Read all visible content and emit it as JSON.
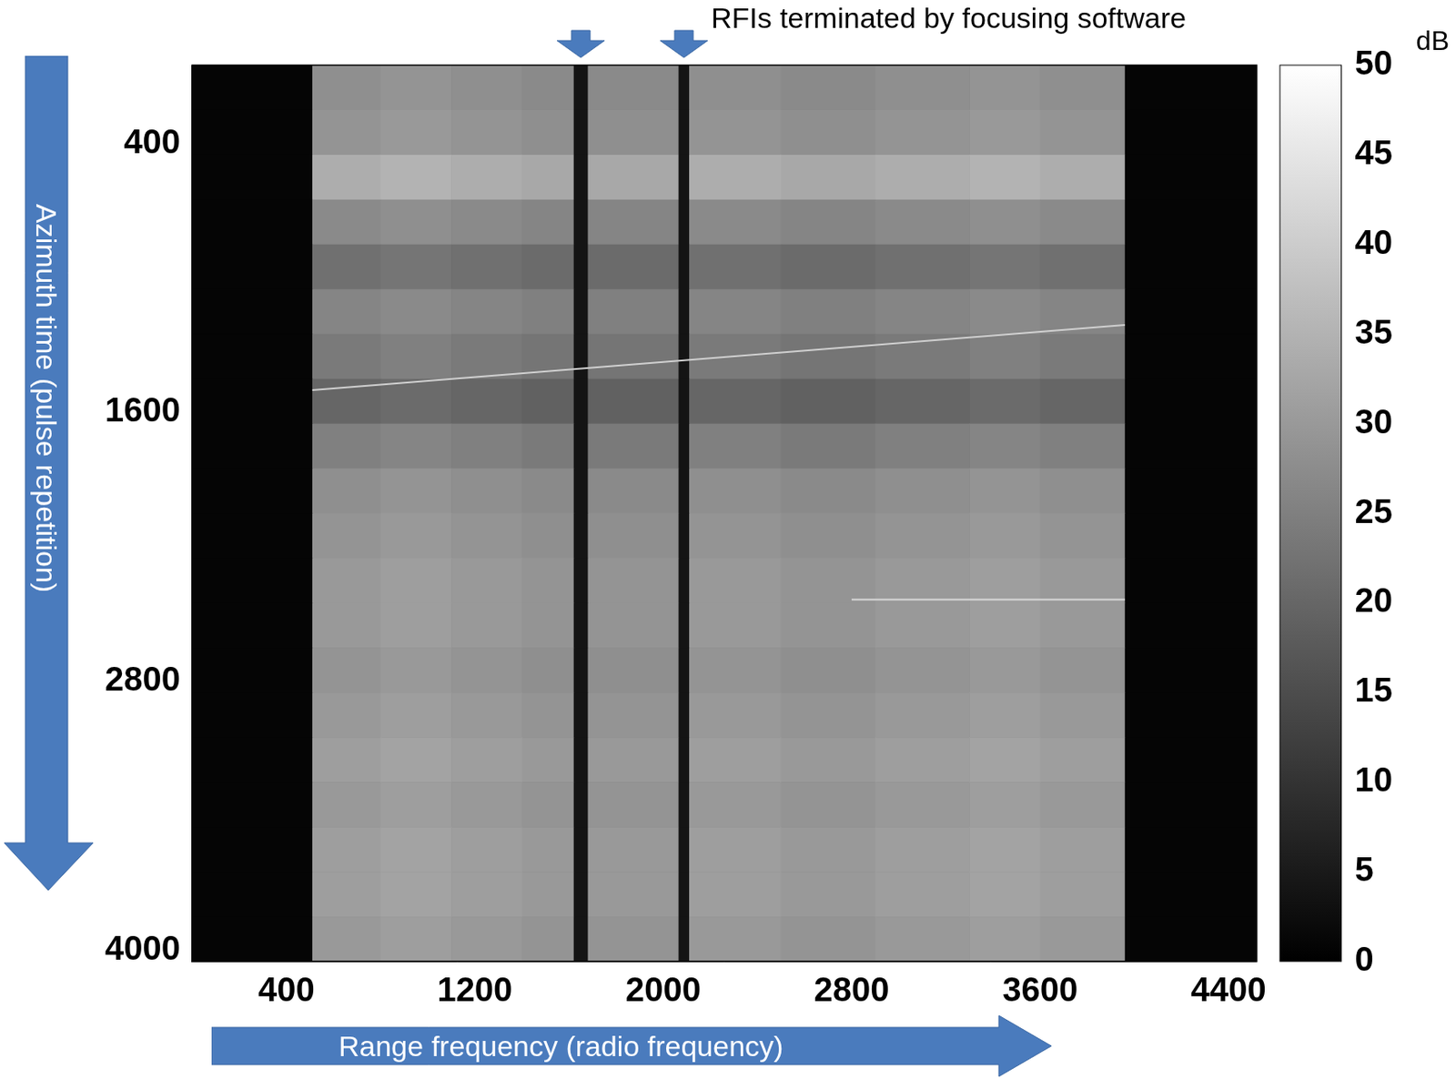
{
  "chart_data": {
    "type": "heatmap",
    "x_label": "Range frequency (radio frequency)",
    "y_label": "Azimuth time (pulse repetition)",
    "xlim": [
      0,
      4520
    ],
    "xticks": [
      400,
      1200,
      2000,
      2800,
      3600,
      4400
    ],
    "ylim": [
      4050,
      50
    ],
    "yticks": [
      400,
      1600,
      2800,
      4000
    ],
    "x_edges": [
      0,
      510,
      800,
      1100,
      1400,
      1620,
      1680,
      2065,
      2110,
      2500,
      2900,
      3300,
      3600,
      3960,
      4520
    ],
    "y_edges": [
      50,
      250,
      450,
      650,
      850,
      1050,
      1250,
      1450,
      1650,
      1850,
      2050,
      2250,
      2450,
      2650,
      2850,
      3050,
      3250,
      3450,
      3650,
      3850,
      4050
    ],
    "cells": [
      [
        1,
        28,
        29,
        28,
        27,
        4,
        27,
        4,
        28,
        27,
        28,
        29,
        28,
        1
      ],
      [
        1,
        29,
        30,
        29,
        28,
        4,
        28,
        4,
        29,
        28,
        29,
        30,
        29,
        1
      ],
      [
        1,
        34,
        35,
        34,
        33,
        4,
        33,
        4,
        34,
        33,
        34,
        35,
        34,
        1
      ],
      [
        1,
        27,
        28,
        27,
        26,
        4,
        26,
        4,
        27,
        26,
        27,
        28,
        27,
        1
      ],
      [
        1,
        22,
        23,
        22,
        21,
        4,
        21,
        4,
        22,
        21,
        22,
        23,
        22,
        1
      ],
      [
        1,
        26,
        27,
        26,
        25,
        4,
        25,
        4,
        26,
        25,
        26,
        27,
        26,
        1
      ],
      [
        1,
        24,
        25,
        24,
        23,
        4,
        23,
        4,
        24,
        23,
        24,
        25,
        24,
        1
      ],
      [
        1,
        20,
        21,
        20,
        19,
        4,
        19,
        4,
        20,
        19,
        20,
        21,
        20,
        1
      ],
      [
        1,
        25,
        26,
        25,
        24,
        4,
        24,
        4,
        25,
        24,
        25,
        26,
        25,
        1
      ],
      [
        1,
        28,
        29,
        28,
        27,
        4,
        27,
        4,
        28,
        27,
        28,
        29,
        28,
        1
      ],
      [
        1,
        29,
        30,
        29,
        28,
        4,
        28,
        4,
        29,
        28,
        29,
        30,
        29,
        1
      ],
      [
        1,
        30,
        31,
        30,
        29,
        4,
        29,
        4,
        30,
        29,
        30,
        31,
        30,
        1
      ],
      [
        1,
        30,
        31,
        30,
        29,
        4,
        29,
        4,
        30,
        29,
        30,
        31,
        30,
        1
      ],
      [
        1,
        29,
        30,
        29,
        28,
        4,
        28,
        4,
        29,
        28,
        29,
        30,
        29,
        1
      ],
      [
        1,
        30,
        31,
        30,
        29,
        4,
        29,
        4,
        30,
        29,
        30,
        31,
        30,
        1
      ],
      [
        1,
        31,
        32,
        31,
        30,
        4,
        30,
        4,
        31,
        30,
        31,
        32,
        31,
        1
      ],
      [
        1,
        30,
        31,
        30,
        29,
        4,
        29,
        4,
        30,
        29,
        30,
        31,
        30,
        1
      ],
      [
        1,
        31,
        32,
        31,
        30,
        4,
        30,
        4,
        31,
        30,
        31,
        32,
        31,
        1
      ],
      [
        1,
        31,
        32,
        31,
        30,
        4,
        30,
        4,
        31,
        30,
        31,
        32,
        31,
        1
      ],
      [
        1,
        30,
        31,
        30,
        29,
        4,
        29,
        4,
        30,
        29,
        30,
        31,
        30,
        1
      ]
    ],
    "colorbar": {
      "label": "dB",
      "range": [
        0,
        50
      ],
      "ticks": [
        0,
        5,
        10,
        15,
        20,
        25,
        30,
        35,
        40,
        45,
        50
      ]
    },
    "series": [
      {
        "x": [
          510,
          3960
        ],
        "values": [
          1500,
          1210
        ],
        "color": "#d0d0d0"
      },
      {
        "x": [
          2800,
          3960
        ],
        "values": [
          2435,
          2435
        ],
        "color": "#d8d8d8"
      }
    ],
    "annotation": {
      "text": "RFIs terminated by focusing software",
      "x": [
        1650,
        2088
      ]
    }
  }
}
